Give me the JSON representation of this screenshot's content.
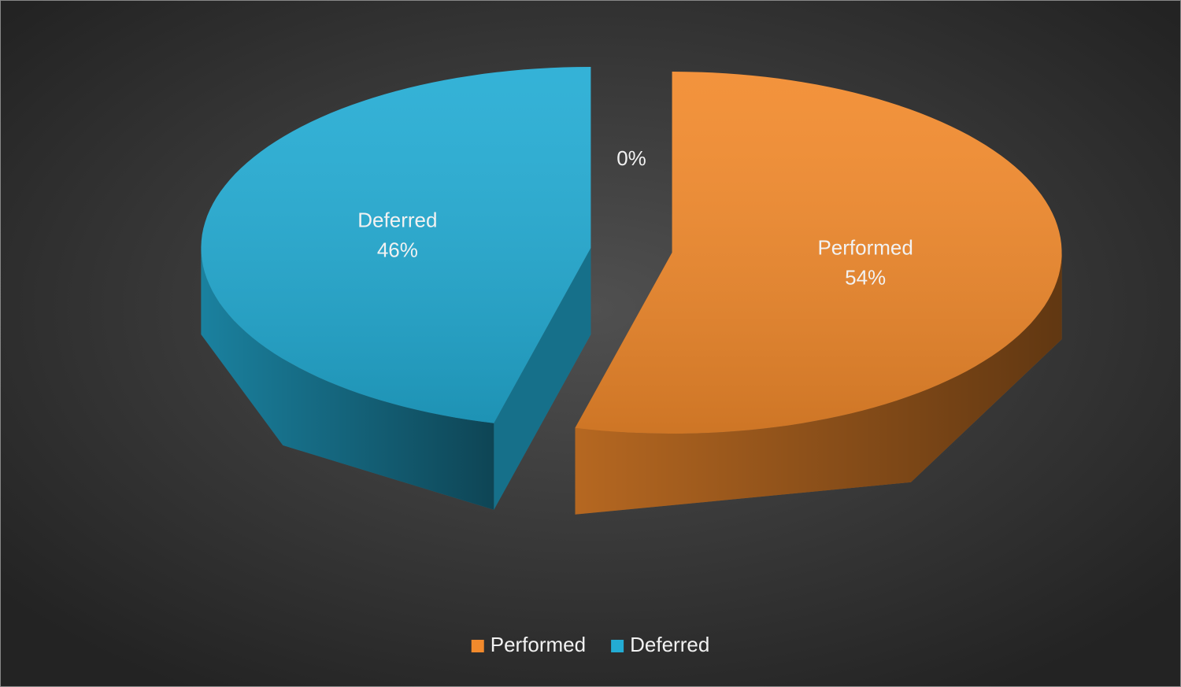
{
  "chart_data": {
    "type": "pie",
    "three_d": true,
    "categories": [
      "Performed",
      "Deferred",
      null
    ],
    "values": [
      54,
      46,
      0
    ],
    "value_labels": [
      "54%",
      "46%",
      "0%"
    ],
    "colors": [
      "#f28a2c",
      "#23acd4"
    ],
    "legend": "bottom"
  }
}
